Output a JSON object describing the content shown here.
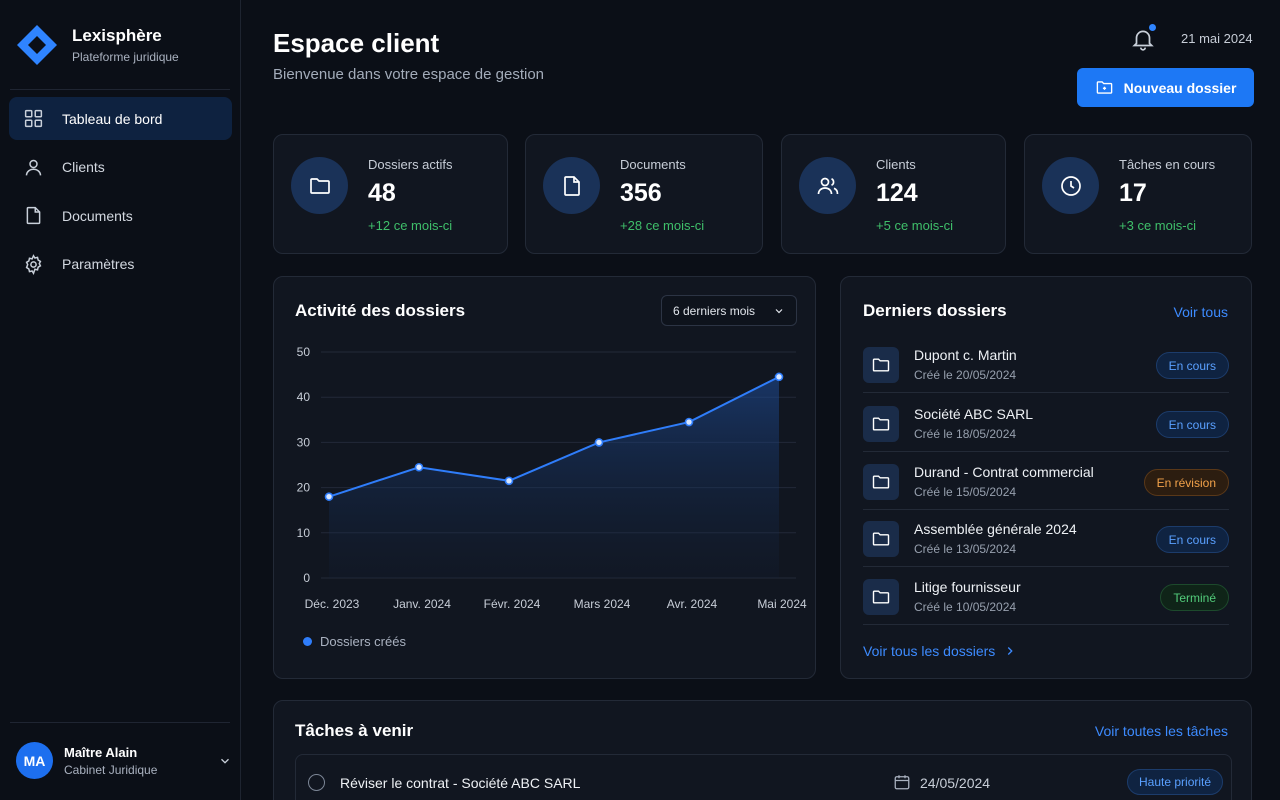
{
  "brand": {
    "name": "Lexisphère",
    "subtitle": "Plateforme juridique"
  },
  "nav": [
    {
      "label": "Tableau de bord",
      "icon": "grid-icon",
      "active": true
    },
    {
      "label": "Clients",
      "icon": "user-icon"
    },
    {
      "label": "Documents",
      "icon": "file-icon"
    },
    {
      "label": "Paramètres",
      "icon": "gear-icon"
    }
  ],
  "user": {
    "initials": "MA",
    "name": "Maître Alain",
    "org": "Cabinet Juridique"
  },
  "header": {
    "title": "Espace client",
    "subtitle": "Bienvenue dans votre espace de gestion",
    "date": "21 mai 2024",
    "new_button": "Nouveau dossier"
  },
  "stats": [
    {
      "label": "Dossiers actifs",
      "value": "48",
      "delta": "+12",
      "delta_suffix": "ce mois-ci",
      "icon": "folder-icon"
    },
    {
      "label": "Documents",
      "value": "356",
      "delta": "+28",
      "delta_suffix": "ce mois-ci",
      "icon": "file-icon"
    },
    {
      "label": "Clients",
      "value": "124",
      "delta": "+5",
      "delta_suffix": "ce mois-ci",
      "icon": "users-icon"
    },
    {
      "label": "Tâches en cours",
      "value": "17",
      "delta": "+3",
      "delta_suffix": "ce mois-ci",
      "icon": "clock-icon"
    }
  ],
  "activity": {
    "title": "Activité des dossiers",
    "range": "6 derniers mois"
  },
  "chart_data": {
    "type": "area",
    "title": "",
    "categories": [
      "Déc. 2023",
      "Janv. 2024",
      "Févr. 2024",
      "Mars 2024",
      "Avr. 2024",
      "Mai 2024"
    ],
    "series": [
      {
        "name": "Dossiers créés",
        "values": [
          18,
          24.5,
          21.5,
          30,
          34.5,
          44.5
        ]
      }
    ],
    "yticks": [
      0,
      10,
      20,
      30,
      40,
      50
    ],
    "ylim": [
      0,
      50
    ],
    "grid": true,
    "legend": "bottom-left",
    "color": "#2f7dfa"
  },
  "recent": {
    "title": "Derniers dossiers",
    "see_all": "Voir tous",
    "see_all_bottom": "Voir tous les dossiers",
    "items": [
      {
        "name": "Dupont c. Martin",
        "date": "Créé le 20/05/2024",
        "status": "En cours",
        "tone": "blue"
      },
      {
        "name": "Société ABC SARL",
        "date": "Créé le 18/05/2024",
        "status": "En cours",
        "tone": "blue"
      },
      {
        "name": "Durand - Contrat commercial",
        "date": "Créé le 15/05/2024",
        "status": "En révision",
        "tone": "orange"
      },
      {
        "name": "Assemblée générale 2024",
        "date": "Créé le 13/05/2024",
        "status": "En cours",
        "tone": "blue"
      },
      {
        "name": "Litige fournisseur",
        "date": "Créé le 10/05/2024",
        "status": "Terminé",
        "tone": "green"
      }
    ]
  },
  "tasks": {
    "title": "Tâches à venir",
    "see_all": "Voir toutes les tâches",
    "items": [
      {
        "label": "Réviser le contrat - Société ABC SARL",
        "date": "24/05/2024",
        "priority": "Haute priorité"
      }
    ]
  }
}
